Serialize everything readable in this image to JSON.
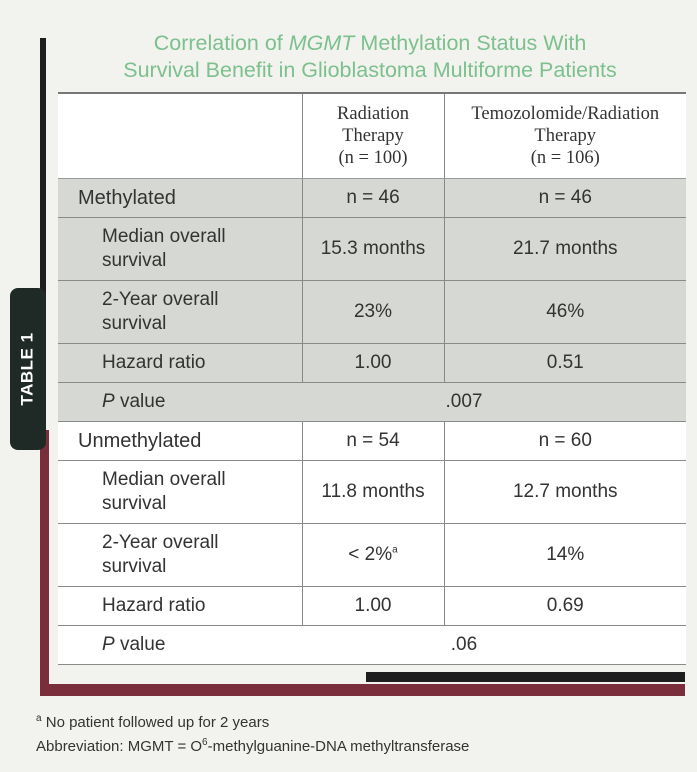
{
  "tab_label": "TABLE 1",
  "title": {
    "line1_pre": "Correlation of ",
    "line1_italic": "MGMT",
    "line1_post": " Methylation Status With",
    "line2": "Survival Benefit in Glioblastoma Multiforme Patients"
  },
  "headers": {
    "col2": [
      "Radiation",
      "Therapy",
      "(n = 100)"
    ],
    "col3": [
      "Temozolomide/Radiation",
      "Therapy",
      "(n = 106)"
    ]
  },
  "methylated": {
    "label": "Methylated",
    "n_rt": "n = 46",
    "n_tmz": "n = 46",
    "median_label": [
      "Median overall",
      "survival"
    ],
    "median_rt": "15.3 months",
    "median_tmz": "21.7 months",
    "two_year_label": [
      "2-Year overall",
      "survival"
    ],
    "two_year_rt": "23%",
    "two_year_tmz": "46%",
    "hazard_label": "Hazard ratio",
    "hazard_rt": "1.00",
    "hazard_tmz": "0.51",
    "p_label_italic": "P",
    "p_label_rest": " value",
    "p_value": ".007"
  },
  "unmethylated": {
    "label": "Unmethylated",
    "n_rt": "n = 54",
    "n_tmz": "n = 60",
    "median_label": [
      "Median overall",
      "survival"
    ],
    "median_rt": "11.8 months",
    "median_tmz": "12.7 months",
    "two_year_label": [
      "2-Year overall",
      "survival"
    ],
    "two_year_rt": "< 2%",
    "two_year_rt_mark": "a",
    "two_year_tmz": "14%",
    "hazard_label": "Hazard ratio",
    "hazard_rt": "1.00",
    "hazard_tmz": "0.69",
    "p_label_italic": "P",
    "p_label_rest": " value",
    "p_value": ".06"
  },
  "footnotes": {
    "mark": "a",
    "note": " No patient followed up for 2 years",
    "abbrev_pre": "Abbreviation: MGMT = O",
    "abbrev_sup": "6",
    "abbrev_post": "-methylguanine-DNA methyltransferase"
  }
}
